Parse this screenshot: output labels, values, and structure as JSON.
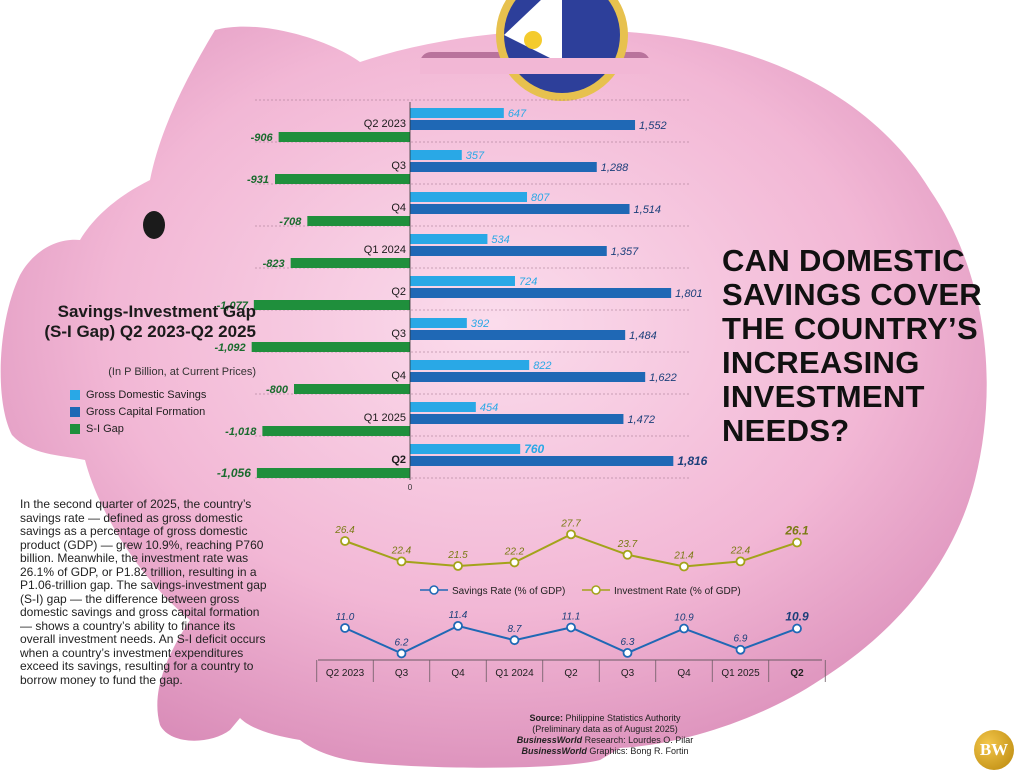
{
  "headline": "CAN DOMESTIC SAVINGS COVER THE COUNTRY’S INCREASING INVESTMENT NEEDS?",
  "panel": {
    "title": "Savings-Investment Gap (S-I Gap) Q2 2023-Q2 2025",
    "subtitle": "(In P Billion, at Current Prices)"
  },
  "legend_bars": [
    {
      "label": "Gross Domestic Savings",
      "color": "#29a8e6"
    },
    {
      "label": "Gross Capital Formation",
      "color": "#1f68b5"
    },
    {
      "label": "S-I Gap",
      "color": "#1f8f3c"
    }
  ],
  "chart_data": [
    {
      "type": "bar",
      "orientation": "horizontal",
      "categories": [
        "Q2 2023",
        "Q3",
        "Q4",
        "Q1 2024",
        "Q2",
        "Q3",
        "Q4",
        "Q1 2025",
        "Q2"
      ],
      "series": [
        {
          "name": "Gross Domestic Savings",
          "color": "#29a8e6",
          "values": [
            647,
            357,
            807,
            534,
            724,
            392,
            822,
            454,
            760
          ],
          "labels": [
            "647",
            "357",
            "807",
            "534",
            "724",
            "392",
            "822",
            "454",
            "760"
          ]
        },
        {
          "name": "Gross Capital Formation",
          "color": "#1f68b5",
          "values": [
            1552,
            1288,
            1514,
            1357,
            1801,
            1484,
            1622,
            1472,
            1816
          ],
          "labels": [
            "1,552",
            "1,288",
            "1,514",
            "1,357",
            "1,801",
            "1,484",
            "1,622",
            "1,472",
            "1,816"
          ]
        },
        {
          "name": "S-I Gap",
          "color": "#1f8f3c",
          "values": [
            -906,
            -931,
            -708,
            -823,
            -1077,
            -1092,
            -800,
            -1018,
            -1056
          ],
          "labels": [
            "-906",
            "-931",
            "-708",
            "-823",
            "-1,077",
            "-1,092",
            "-800",
            "-1,018",
            "-1,056"
          ]
        }
      ],
      "zero_label": "0",
      "highlight_last": true
    },
    {
      "type": "line",
      "categories": [
        "Q2 2023",
        "Q3",
        "Q4",
        "Q1 2024",
        "Q2",
        "Q3",
        "Q4",
        "Q1 2025",
        "Q2"
      ],
      "series": [
        {
          "name": "Investment Rate (% of GDP)",
          "color": "#a3a31a",
          "values": [
            26.4,
            22.4,
            21.5,
            22.2,
            27.7,
            23.7,
            21.4,
            22.4,
            26.1
          ]
        },
        {
          "name": "Savings Rate (% of GDP)",
          "color": "#1f68b5",
          "values": [
            11.0,
            6.2,
            11.4,
            8.7,
            11.1,
            6.3,
            10.9,
            6.9,
            10.9
          ]
        }
      ],
      "inv_labels": [
        "26.4",
        "22.4",
        "21.5",
        "22.2",
        "27.7",
        "23.7",
        "21.4",
        "22.4",
        "26.1"
      ],
      "sav_labels": [
        "11.0",
        "6.2",
        "11.4",
        "8.7",
        "11.1",
        "6.3",
        "10.9",
        "6.9",
        "10.9"
      ],
      "legend": [
        "Savings Rate (% of GDP)",
        "Investment Rate (% of GDP)"
      ],
      "legend_placement": "middle",
      "highlight_last": true
    }
  ],
  "body_text": "In the second quarter of 2025, the country’s savings rate — defined as gross domestic savings as a percentage of gross domestic product (GDP) — grew 10.9%, reaching P760 billion. Meanwhile, the investment rate was 26.1% of GDP, or P1.82 trillion, resulting in a P1.06-trillion gap. The savings-investment gap (S-I) gap — the difference between gross domestic savings and gross capital formation — shows a country’s ability to finance its overall investment needs. An S-I deficit occurs when a country’s investment expenditures exceed its savings, resulting for a country to borrow money to fund the gap.",
  "source": {
    "source_label": "Source:",
    "source_text": "Philippine Statistics Authority",
    "note": "(Preliminary data as of August 2025)",
    "research_label": "BusinessWorld",
    "research_text": "Research: Lourdes O. Pilar",
    "graphics_label": "BusinessWorld",
    "graphics_text": "Graphics: Bong R. Fortin"
  },
  "logo_text": "BW",
  "colors": {
    "pig": "#f2b9d6",
    "pig_dark": "#d98cb8"
  }
}
